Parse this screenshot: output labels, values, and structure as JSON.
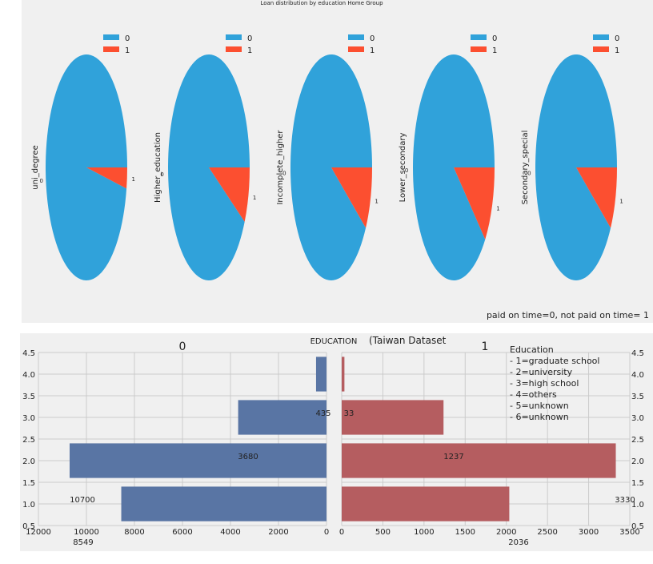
{
  "chart_data": [
    {
      "type": "pie",
      "title": "Loan distribution by education Home Group",
      "footnote": "paid on time=0, not paid on time= 1",
      "legend": {
        "placement": "top",
        "entries": [
          "0",
          "1"
        ]
      },
      "colors": {
        "0": "#30a2da",
        "1": "#fc4f30"
      },
      "pies": [
        {
          "label": "uni_degree",
          "slices": [
            {
              "name": "0",
              "value": 0.97
            },
            {
              "name": "1",
              "value": 0.03
            }
          ]
        },
        {
          "label": "Higher_education",
          "slices": [
            {
              "name": "0",
              "value": 0.92
            },
            {
              "name": "1",
              "value": 0.08
            }
          ]
        },
        {
          "label": "Incomplete_higher",
          "slices": [
            {
              "name": "0",
              "value": 0.91
            },
            {
              "name": "1",
              "value": 0.09
            }
          ]
        },
        {
          "label": "Lower_secondary",
          "slices": [
            {
              "name": "0",
              "value": 0.89
            },
            {
              "name": "1",
              "value": 0.11
            }
          ]
        },
        {
          "label": "Secondary_special",
          "slices": [
            {
              "name": "0",
              "value": 0.91
            },
            {
              "name": "1",
              "value": 0.09
            }
          ]
        }
      ]
    },
    {
      "type": "bar",
      "orientation": "horizontal-mirrored",
      "title": "EDUCATION",
      "subtitle": "(Taiwan Dataset",
      "y_ticks": [
        "0.5",
        "1.0",
        "1.5",
        "2.0",
        "2.5",
        "3.0",
        "3.5",
        "4.0",
        "4.5"
      ],
      "ylim": [
        0.5,
        4.5
      ],
      "grid": true,
      "left": {
        "title": "0",
        "color": "#5975a4",
        "xlim": [
          0,
          12000
        ],
        "x_ticks": [
          "12000",
          "10000",
          "8000",
          "6000",
          "4000",
          "2000",
          "0"
        ],
        "bars": [
          {
            "y": 1,
            "value": 8549
          },
          {
            "y": 2,
            "value": 10700
          },
          {
            "y": 3,
            "value": 3680
          },
          {
            "y": 4,
            "value": 435
          }
        ],
        "data_labels": [
          "8549",
          "10700",
          "3680",
          "435"
        ]
      },
      "right": {
        "title": "1",
        "color": "#b55d60",
        "xlim": [
          0,
          3500
        ],
        "x_ticks": [
          "0",
          "500",
          "1000",
          "1500",
          "2000",
          "2500",
          "3000",
          "3500"
        ],
        "bars": [
          {
            "y": 1,
            "value": 2036
          },
          {
            "y": 2,
            "value": 3330
          },
          {
            "y": 3,
            "value": 1237
          },
          {
            "y": 4,
            "value": 33
          }
        ],
        "data_labels": [
          "2036",
          "3330",
          "1237",
          "33"
        ]
      },
      "legend_text": {
        "heading": "Education",
        "lines": [
          "- 1=graduate school",
          "- 2=university",
          "- 3=high school",
          "- 4=others",
          "- 5=unknown",
          "- 6=unknown"
        ]
      }
    }
  ]
}
